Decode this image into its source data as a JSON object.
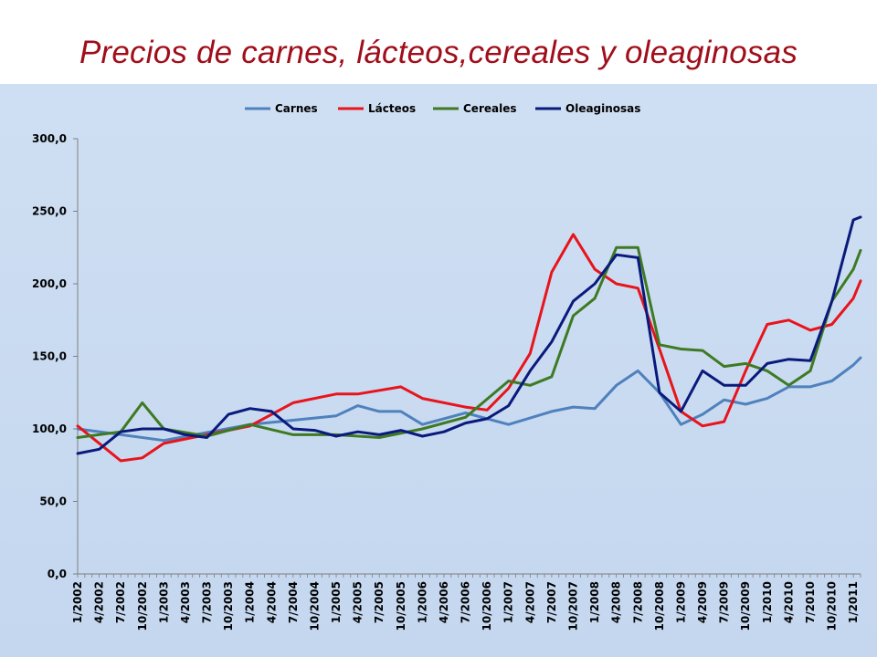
{
  "slide": {
    "title": "Precios de carnes, lácteos,cereales y oleaginosas"
  },
  "chart_data": {
    "type": "line",
    "title": "",
    "xlabel": "",
    "ylabel": "",
    "ylim": [
      0,
      300
    ],
    "y_ticks": [
      "0,0",
      "50,0",
      "100,0",
      "150,0",
      "200,0",
      "250,0",
      "300,0"
    ],
    "y_tick_values": [
      0,
      50,
      100,
      150,
      200,
      250,
      300
    ],
    "x_start": "1/2002",
    "x_end": "2/2011",
    "x_tick_labels": [
      "1/2002",
      "4/2002",
      "7/2002",
      "10/2002",
      "1/2003",
      "4/2003",
      "7/2003",
      "10/2003",
      "1/2004",
      "4/2004",
      "7/2004",
      "10/2004",
      "1/2005",
      "4/2005",
      "7/2005",
      "10/2005",
      "1/2006",
      "4/2006",
      "7/2006",
      "10/2006",
      "1/2007",
      "4/2007",
      "7/2007",
      "10/2007",
      "1/2008",
      "4/2008",
      "7/2008",
      "10/2008",
      "1/2009",
      "4/2009",
      "7/2009",
      "10/2009",
      "1/2010",
      "4/2010",
      "7/2010",
      "10/2010",
      "1/2011"
    ],
    "grid": false,
    "legend_position": "top",
    "series": [
      {
        "name": "Carnes",
        "color": "#4f81bd",
        "points": [
          [
            "1/2002",
            100
          ],
          [
            "1/2003",
            92
          ],
          [
            "1/2004",
            103
          ],
          [
            "1/2005",
            109
          ],
          [
            "4/2005",
            116
          ],
          [
            "7/2005",
            112
          ],
          [
            "10/2005",
            112
          ],
          [
            "1/2006",
            103
          ],
          [
            "7/2006",
            111
          ],
          [
            "1/2007",
            103
          ],
          [
            "7/2007",
            112
          ],
          [
            "10/2007",
            115
          ],
          [
            "1/2008",
            114
          ],
          [
            "4/2008",
            130
          ],
          [
            "7/2008",
            140
          ],
          [
            "10/2008",
            125
          ],
          [
            "1/2009",
            103
          ],
          [
            "4/2009",
            110
          ],
          [
            "7/2009",
            120
          ],
          [
            "10/2009",
            117
          ],
          [
            "1/2010",
            121
          ],
          [
            "4/2010",
            129
          ],
          [
            "7/2010",
            129
          ],
          [
            "10/2010",
            133
          ],
          [
            "1/2011",
            144
          ],
          [
            "2/2011",
            149
          ]
        ]
      },
      {
        "name": "Lácteos",
        "color": "#e8141c",
        "points": [
          [
            "1/2002",
            102
          ],
          [
            "7/2002",
            78
          ],
          [
            "10/2002",
            80
          ],
          [
            "1/2003",
            90
          ],
          [
            "1/2004",
            102
          ],
          [
            "7/2004",
            118
          ],
          [
            "1/2005",
            124
          ],
          [
            "4/2005",
            124
          ],
          [
            "10/2005",
            129
          ],
          [
            "1/2006",
            121
          ],
          [
            "7/2006",
            115
          ],
          [
            "10/2006",
            113
          ],
          [
            "1/2007",
            128
          ],
          [
            "4/2007",
            152
          ],
          [
            "7/2007",
            208
          ],
          [
            "10/2007",
            234
          ],
          [
            "1/2008",
            210
          ],
          [
            "4/2008",
            200
          ],
          [
            "7/2008",
            197
          ],
          [
            "10/2008",
            155
          ],
          [
            "1/2009",
            112
          ],
          [
            "4/2009",
            102
          ],
          [
            "7/2009",
            105
          ],
          [
            "10/2009",
            140
          ],
          [
            "1/2010",
            172
          ],
          [
            "4/2010",
            175
          ],
          [
            "7/2010",
            168
          ],
          [
            "10/2010",
            172
          ],
          [
            "1/2011",
            190
          ],
          [
            "2/2011",
            202
          ]
        ]
      },
      {
        "name": "Cereales",
        "color": "#3e7a23",
        "points": [
          [
            "1/2002",
            94
          ],
          [
            "7/2002",
            98
          ],
          [
            "10/2002",
            118
          ],
          [
            "1/2003",
            100
          ],
          [
            "7/2003",
            95
          ],
          [
            "1/2004",
            103
          ],
          [
            "7/2004",
            96
          ],
          [
            "1/2005",
            96
          ],
          [
            "7/2005",
            94
          ],
          [
            "1/2006",
            100
          ],
          [
            "7/2006",
            108
          ],
          [
            "1/2007",
            133
          ],
          [
            "4/2007",
            130
          ],
          [
            "7/2007",
            136
          ],
          [
            "10/2007",
            178
          ],
          [
            "1/2008",
            190
          ],
          [
            "4/2008",
            225
          ],
          [
            "7/2008",
            225
          ],
          [
            "10/2008",
            158
          ],
          [
            "1/2009",
            155
          ],
          [
            "4/2009",
            154
          ],
          [
            "7/2009",
            143
          ],
          [
            "10/2009",
            145
          ],
          [
            "1/2010",
            140
          ],
          [
            "4/2010",
            130
          ],
          [
            "7/2010",
            140
          ],
          [
            "10/2010",
            188
          ],
          [
            "1/2011",
            210
          ],
          [
            "2/2011",
            223
          ]
        ]
      },
      {
        "name": "Oleaginosas",
        "color": "#0a1a7c",
        "points": [
          [
            "1/2002",
            83
          ],
          [
            "4/2002",
            86
          ],
          [
            "7/2002",
            98
          ],
          [
            "10/2002",
            100
          ],
          [
            "1/2003",
            100
          ],
          [
            "4/2003",
            96
          ],
          [
            "7/2003",
            94
          ],
          [
            "10/2003",
            110
          ],
          [
            "1/2004",
            114
          ],
          [
            "4/2004",
            112
          ],
          [
            "7/2004",
            100
          ],
          [
            "10/2004",
            99
          ],
          [
            "1/2005",
            95
          ],
          [
            "4/2005",
            98
          ],
          [
            "7/2005",
            96
          ],
          [
            "10/2005",
            99
          ],
          [
            "1/2006",
            95
          ],
          [
            "4/2006",
            98
          ],
          [
            "7/2006",
            104
          ],
          [
            "10/2006",
            107
          ],
          [
            "1/2007",
            116
          ],
          [
            "4/2007",
            140
          ],
          [
            "7/2007",
            160
          ],
          [
            "10/2007",
            188
          ],
          [
            "1/2008",
            200
          ],
          [
            "4/2008",
            220
          ],
          [
            "7/2008",
            218
          ],
          [
            "10/2008",
            125
          ],
          [
            "1/2009",
            112
          ],
          [
            "4/2009",
            140
          ],
          [
            "7/2009",
            130
          ],
          [
            "10/2009",
            130
          ],
          [
            "1/2010",
            145
          ],
          [
            "4/2010",
            148
          ],
          [
            "7/2010",
            147
          ],
          [
            "10/2010",
            188
          ],
          [
            "1/2011",
            244
          ],
          [
            "2/2011",
            246
          ]
        ]
      }
    ]
  }
}
